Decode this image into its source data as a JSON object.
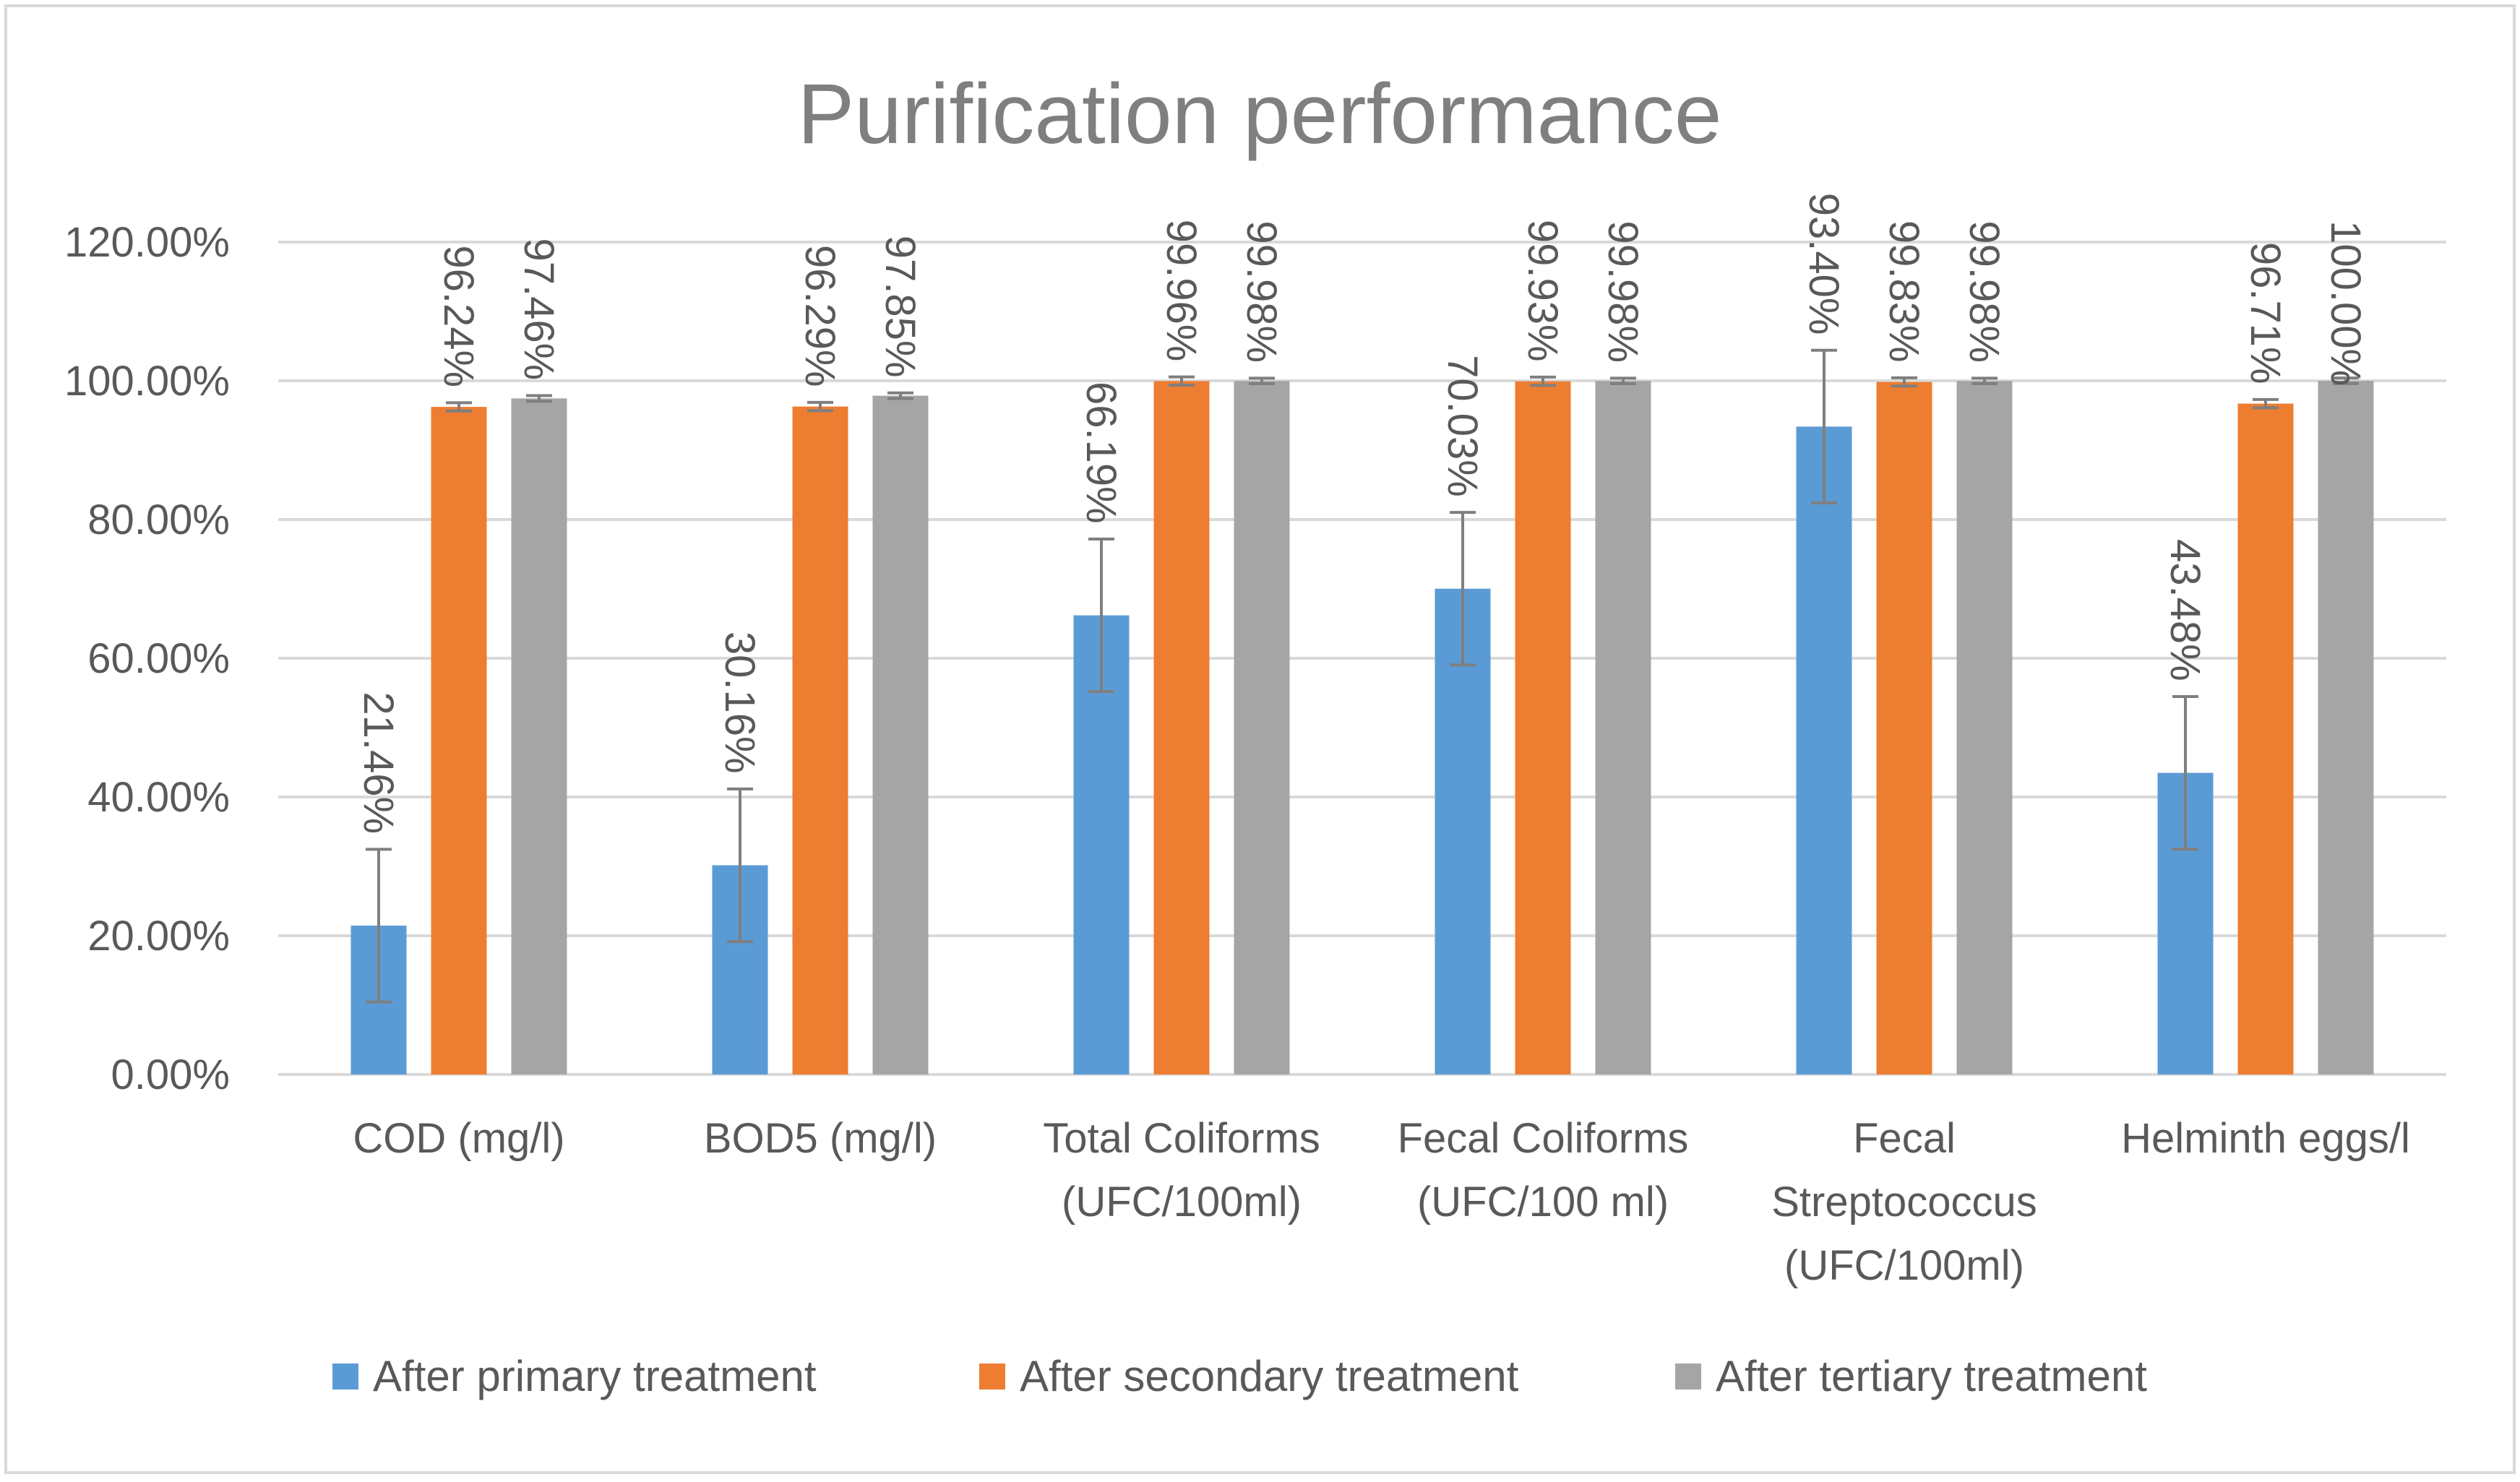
{
  "chart_data": {
    "type": "bar",
    "title": "Purification performance",
    "xlabel": "",
    "ylabel": "",
    "ylim": [
      0,
      1.2
    ],
    "y_ticks": [
      0,
      0.2,
      0.4,
      0.6,
      0.8,
      1.0,
      1.2
    ],
    "y_tick_labels": [
      "0.00%",
      "20.00%",
      "40.00%",
      "60.00%",
      "80.00%",
      "100.00%",
      "120.00%"
    ],
    "grid": true,
    "legend_position": "bottom",
    "categories": [
      [
        "COD (mg/l)"
      ],
      [
        "BOD5 (mg/l)"
      ],
      [
        "Total Coliforms",
        "(UFC/100ml)"
      ],
      [
        "Fecal Coliforms",
        "(UFC/100 ml)"
      ],
      [
        "Fecal",
        "Streptococcus",
        "(UFC/100ml)"
      ],
      [
        "Helminth eggs/l"
      ]
    ],
    "series": [
      {
        "name": "After primary treatment",
        "color": "#5B9BD5",
        "values": [
          0.2146,
          0.3016,
          0.6619,
          0.7003,
          0.934,
          0.4348
        ],
        "labels": [
          "21.46%",
          "30.16%",
          "66.19%",
          "70.03%",
          "93.40%",
          "43.48%"
        ],
        "error": [
          0.11,
          0.11,
          0.11,
          0.11,
          0.11,
          0.11
        ]
      },
      {
        "name": "After secondary treatment",
        "color": "#ED7D31",
        "values": [
          0.9624,
          0.9629,
          0.9996,
          0.9993,
          0.9983,
          0.9671
        ],
        "labels": [
          "96.24%",
          "96.29%",
          "99.96%",
          "99.93%",
          "99.83%",
          "96.71%"
        ],
        "error": [
          0.006,
          0.006,
          0.006,
          0.006,
          0.006,
          0.006
        ]
      },
      {
        "name": "After tertiary treatment",
        "color": "#A5A5A5",
        "values": [
          0.9746,
          0.9785,
          0.9998,
          0.9998,
          0.9998,
          1.0
        ],
        "labels": [
          "97.46%",
          "97.85%",
          "99.98%",
          "99.98%",
          "99.98%",
          "100.00%"
        ],
        "error": [
          0.004,
          0.004,
          0.004,
          0.004,
          0.004,
          0.004
        ]
      }
    ]
  },
  "colors": {
    "text": "#595959",
    "title": "#7f7f7f",
    "grid": "#d9d9d9",
    "border": "#d9d9d9",
    "error_bar": "#7f7f7f"
  }
}
